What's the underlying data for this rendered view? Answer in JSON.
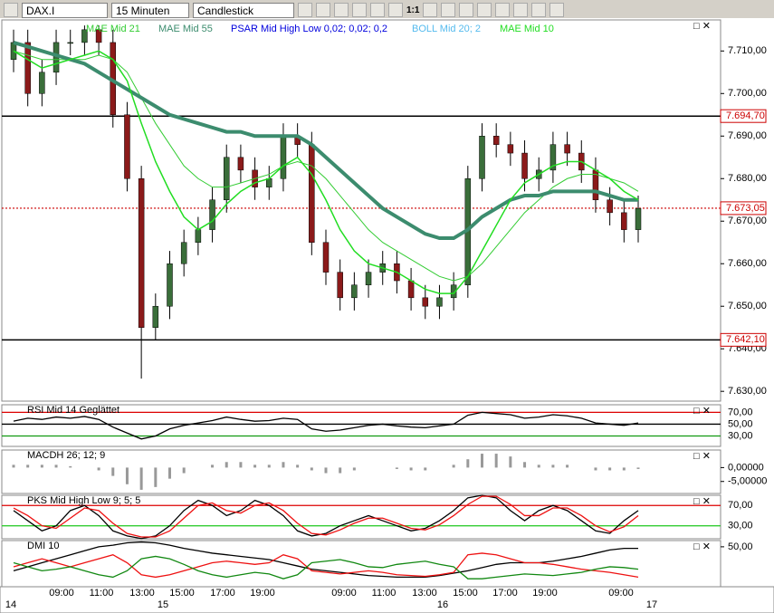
{
  "toolbar": {
    "symbol": "DAX.I",
    "interval": "15 Minuten",
    "chart_type": "Candlestick",
    "zoom": "1:1"
  },
  "x_axis": {
    "times": [
      "09:00",
      "11:00",
      "13:00",
      "15:00",
      "17:00",
      "19:00",
      "09:00",
      "11:00",
      "13:00",
      "15:00",
      "17:00",
      "19:00",
      "09:00"
    ],
    "days": [
      "14",
      "15",
      "16",
      "17"
    ]
  },
  "chart_data": [
    {
      "type": "candlestick",
      "legend": "DAX.I",
      "open": [
        7708,
        7712,
        7700,
        7705,
        7712,
        7712,
        7715,
        7712,
        7695,
        7680,
        7645,
        7650,
        7660,
        7665,
        7668,
        7675,
        7685,
        7682,
        7678,
        7680,
        7690,
        7688,
        7665,
        7658,
        7652,
        7655,
        7658,
        7660,
        7656,
        7652,
        7650,
        7652,
        7655,
        7680,
        7690,
        7688,
        7686,
        7680,
        7682,
        7688,
        7686,
        7682,
        7675,
        7672,
        7668
      ],
      "high": [
        7715,
        7715,
        7708,
        7715,
        7715,
        7716,
        7716,
        7715,
        7698,
        7683,
        7653,
        7663,
        7668,
        7671,
        7678,
        7688,
        7688,
        7685,
        7683,
        7693,
        7693,
        7691,
        7668,
        7661,
        7658,
        7661,
        7663,
        7663,
        7659,
        7655,
        7655,
        7658,
        7683,
        7693,
        7693,
        7691,
        7689,
        7685,
        7691,
        7691,
        7689,
        7685,
        7678,
        7675,
        7676
      ],
      "low": [
        7705,
        7697,
        7697,
        7702,
        7709,
        7709,
        7709,
        7692,
        7677,
        7633,
        7642,
        7647,
        7657,
        7662,
        7665,
        7672,
        7679,
        7675,
        7675,
        7677,
        7685,
        7662,
        7655,
        7649,
        7649,
        7652,
        7655,
        7653,
        7649,
        7647,
        7647,
        7649,
        7652,
        7677,
        7685,
        7683,
        7677,
        7677,
        7679,
        7683,
        7679,
        7672,
        7669,
        7665,
        7665
      ],
      "close": [
        7712,
        7700,
        7705,
        7712,
        7712,
        7715,
        7712,
        7695,
        7680,
        7645,
        7650,
        7660,
        7665,
        7668,
        7675,
        7685,
        7682,
        7678,
        7680,
        7690,
        7688,
        7665,
        7658,
        7652,
        7655,
        7658,
        7660,
        7656,
        7652,
        7650,
        7652,
        7655,
        7680,
        7690,
        7688,
        7686,
        7680,
        7682,
        7688,
        7686,
        7682,
        7675,
        7672,
        7668,
        7673
      ],
      "up_color": "#3a6e3a",
      "down_color": "#8b1a1a",
      "series": [
        {
          "name": "MAE Mid 21",
          "color": "#33cc33",
          "width": 1,
          "values": [
            7710,
            7709,
            7708,
            7708,
            7708,
            7708,
            7709,
            7708,
            7705,
            7699,
            7693,
            7688,
            7683,
            7680,
            7678,
            7678,
            7679,
            7680,
            7681,
            7683,
            7684,
            7683,
            7680,
            7676,
            7672,
            7668,
            7665,
            7663,
            7661,
            7659,
            7657,
            7656,
            7657,
            7660,
            7664,
            7668,
            7672,
            7675,
            7678,
            7680,
            7681,
            7681,
            7680,
            7679,
            7677
          ]
        },
        {
          "name": "MAE Mid 55",
          "color": "#3c8c6e",
          "width": 4,
          "values": [
            7712,
            7711,
            7710,
            7709,
            7708,
            7707,
            7705,
            7703,
            7701,
            7699,
            7697,
            7695,
            7694,
            7693,
            7692,
            7691,
            7691,
            7690,
            7690,
            7690,
            7690,
            7688,
            7685,
            7682,
            7679,
            7676,
            7673,
            7671,
            7669,
            7667,
            7666,
            7666,
            7668,
            7671,
            7673,
            7675,
            7676,
            7676,
            7677,
            7677,
            7677,
            7677,
            7676,
            7675,
            7675
          ]
        },
        {
          "name": "MAE Mid 10",
          "color": "#22dd22",
          "width": 1.5,
          "values": [
            7710,
            7708,
            7706,
            7707,
            7708,
            7709,
            7710,
            7708,
            7703,
            7693,
            7684,
            7677,
            7671,
            7668,
            7670,
            7674,
            7677,
            7679,
            7680,
            7683,
            7685,
            7681,
            7675,
            7668,
            7663,
            7660,
            7659,
            7658,
            7656,
            7654,
            7653,
            7653,
            7657,
            7663,
            7669,
            7675,
            7679,
            7681,
            7683,
            7684,
            7684,
            7682,
            7680,
            7677,
            7675
          ]
        }
      ],
      "other_indicators": [
        {
          "name": "PSAR Mid High Low 0,02; 0,02; 0,2",
          "color": "#0000dd"
        },
        {
          "name": "BOLL Mid 20; 2",
          "color": "#55bbee"
        }
      ],
      "hlines": [
        {
          "value": 7694.7,
          "label": "7.694,70",
          "color": "#000000",
          "dash": false
        },
        {
          "value": 7642.1,
          "label": "7.642,10",
          "color": "#000000",
          "dash": false
        },
        {
          "value": 7673.05,
          "label": "7.673,05",
          "color": "#cc0000",
          "dash": true
        }
      ],
      "ylim": [
        7627.7,
        7717.3
      ],
      "yticks": [
        {
          "value": 7630,
          "label": "7.630,00"
        },
        {
          "value": 7640,
          "label": "7.640,00"
        },
        {
          "value": 7650,
          "label": "7.650,00"
        },
        {
          "value": 7660,
          "label": "7.660,00"
        },
        {
          "value": 7670,
          "label": "7.670,00"
        },
        {
          "value": 7680,
          "label": "7.680,00"
        },
        {
          "value": 7690,
          "label": "7.690,00"
        },
        {
          "value": 7700,
          "label": "7.700,00"
        },
        {
          "value": 7710,
          "label": "7.710,00"
        }
      ]
    },
    {
      "type": "line",
      "legend": "RSI Mid 14 Geglättet",
      "ylim": [
        12.4,
        82.8
      ],
      "yticks": [
        {
          "value": 30,
          "label": "30,00"
        },
        {
          "value": 50,
          "label": "50,00"
        },
        {
          "value": 70,
          "label": "70,00"
        }
      ],
      "level_colors": [
        "#119911",
        "#000000",
        "#dd0000"
      ],
      "series": [
        {
          "color": "#000000",
          "values": [
            55,
            60,
            58,
            62,
            60,
            63,
            58,
            45,
            35,
            25,
            30,
            42,
            48,
            52,
            56,
            62,
            58,
            55,
            56,
            60,
            58,
            42,
            38,
            40,
            44,
            48,
            50,
            47,
            45,
            44,
            47,
            50,
            65,
            70,
            68,
            66,
            60,
            62,
            66,
            64,
            60,
            52,
            50,
            48,
            52
          ]
        }
      ]
    },
    {
      "type": "bar",
      "legend": "MACDH 26; 12; 9",
      "ylim": [
        -9.33,
        6.33
      ],
      "color": "#999999",
      "yticks": [
        {
          "value": 0,
          "label": "0,00000"
        },
        {
          "value": -5,
          "label": "-5,00000"
        }
      ],
      "values": [
        1,
        1,
        1,
        1,
        0.5,
        0,
        -1,
        -3,
        -6,
        -8,
        -7,
        -4,
        -2,
        0,
        1,
        2,
        2,
        1,
        1,
        2,
        1,
        -1,
        -2,
        -2,
        -1,
        0,
        0,
        -0.5,
        -1,
        -1,
        0,
        1,
        3,
        5,
        5,
        4,
        2,
        1,
        1,
        1,
        0,
        -1,
        -1,
        -1,
        -0.5
      ]
    },
    {
      "type": "line",
      "legend": "PKS Mid High Low 9; 5; 5",
      "ylim": [
        4.5,
        90
      ],
      "yticks": [
        {
          "value": 30,
          "label": "30,00"
        },
        {
          "value": 70,
          "label": "70,00"
        }
      ],
      "level_colors": [
        "#33cc33",
        "#dd0000"
      ],
      "series": [
        {
          "color": "#000000",
          "values": [
            60,
            40,
            20,
            30,
            60,
            70,
            50,
            20,
            10,
            5,
            10,
            30,
            60,
            80,
            70,
            50,
            60,
            80,
            70,
            50,
            20,
            10,
            15,
            30,
            40,
            50,
            40,
            30,
            20,
            25,
            40,
            60,
            85,
            90,
            85,
            60,
            40,
            60,
            70,
            60,
            40,
            20,
            15,
            40,
            60
          ]
        },
        {
          "color": "#ee1111",
          "values": [
            65,
            50,
            30,
            25,
            45,
            65,
            60,
            35,
            15,
            8,
            8,
            20,
            45,
            70,
            75,
            60,
            55,
            70,
            75,
            60,
            35,
            15,
            12,
            22,
            35,
            45,
            45,
            35,
            25,
            22,
            32,
            50,
            72,
            88,
            88,
            72,
            50,
            50,
            65,
            65,
            50,
            30,
            18,
            28,
            50
          ]
        }
      ]
    },
    {
      "type": "line",
      "legend": "DMI 10",
      "ylim": [
        0,
        57.8
      ],
      "yticks": [
        {
          "value": 50,
          "label": "50,00"
        }
      ],
      "series": [
        {
          "color": "#000000",
          "values": [
            20,
            25,
            30,
            35,
            40,
            45,
            50,
            52,
            55,
            56,
            55,
            52,
            48,
            45,
            42,
            40,
            38,
            36,
            34,
            30,
            26,
            22,
            20,
            18,
            16,
            14,
            13,
            12,
            12,
            12,
            14,
            17,
            20,
            24,
            28,
            30,
            30,
            30,
            32,
            35,
            38,
            42,
            46,
            48,
            48
          ]
        },
        {
          "color": "#ee1111",
          "values": [
            25,
            30,
            35,
            30,
            25,
            30,
            35,
            40,
            30,
            15,
            12,
            15,
            20,
            25,
            30,
            32,
            30,
            28,
            30,
            40,
            35,
            20,
            18,
            16,
            18,
            20,
            18,
            15,
            14,
            13,
            15,
            18,
            40,
            42,
            40,
            35,
            30,
            30,
            28,
            25,
            22,
            20,
            18,
            15,
            12
          ]
        },
        {
          "color": "#118811",
          "values": [
            30,
            25,
            20,
            22,
            25,
            20,
            15,
            12,
            20,
            35,
            38,
            35,
            28,
            20,
            15,
            12,
            15,
            18,
            16,
            10,
            15,
            30,
            32,
            34,
            30,
            25,
            24,
            28,
            30,
            32,
            28,
            25,
            10,
            10,
            12,
            14,
            16,
            15,
            14,
            16,
            18,
            22,
            25,
            24,
            22
          ]
        }
      ]
    }
  ]
}
